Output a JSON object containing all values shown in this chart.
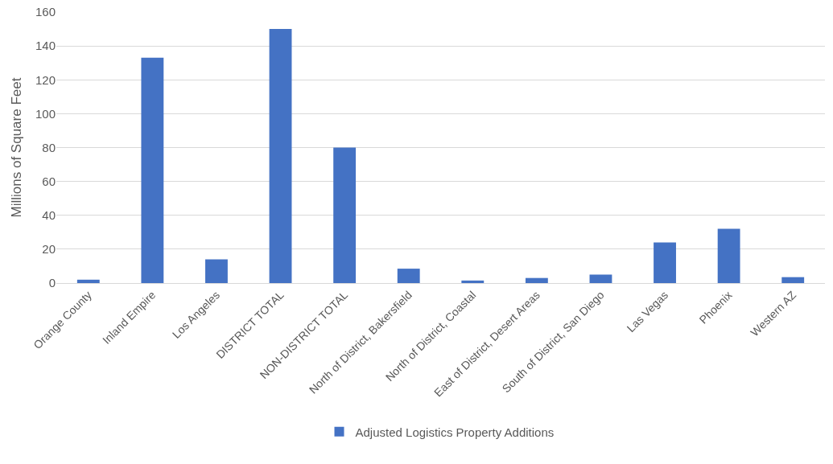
{
  "chart_data": {
    "type": "bar",
    "ylabel": "Millions of Square Feet",
    "categories": [
      "Orange County",
      "Inland Empire",
      "Los Angeles",
      "DISTRICT TOTAL",
      "NON-DISTRICT TOTAL",
      "North of District, Bakersfield",
      "North of District, Coastal",
      "East of District, Desert Areas",
      "South of District, San Diego",
      "Las Vegas",
      "Phoenix",
      "Western AZ"
    ],
    "series": [
      {
        "name": "Adjusted Logistics Property Additions",
        "color": "#4472c4",
        "values": [
          2,
          133,
          14,
          150,
          80,
          8.5,
          1.5,
          3,
          5,
          24,
          32,
          3.5
        ]
      }
    ],
    "ylim": [
      0,
      160
    ],
    "yticks": [
      0,
      20,
      40,
      60,
      80,
      100,
      120,
      140,
      160
    ],
    "grid": "y",
    "legend": "bottom"
  }
}
